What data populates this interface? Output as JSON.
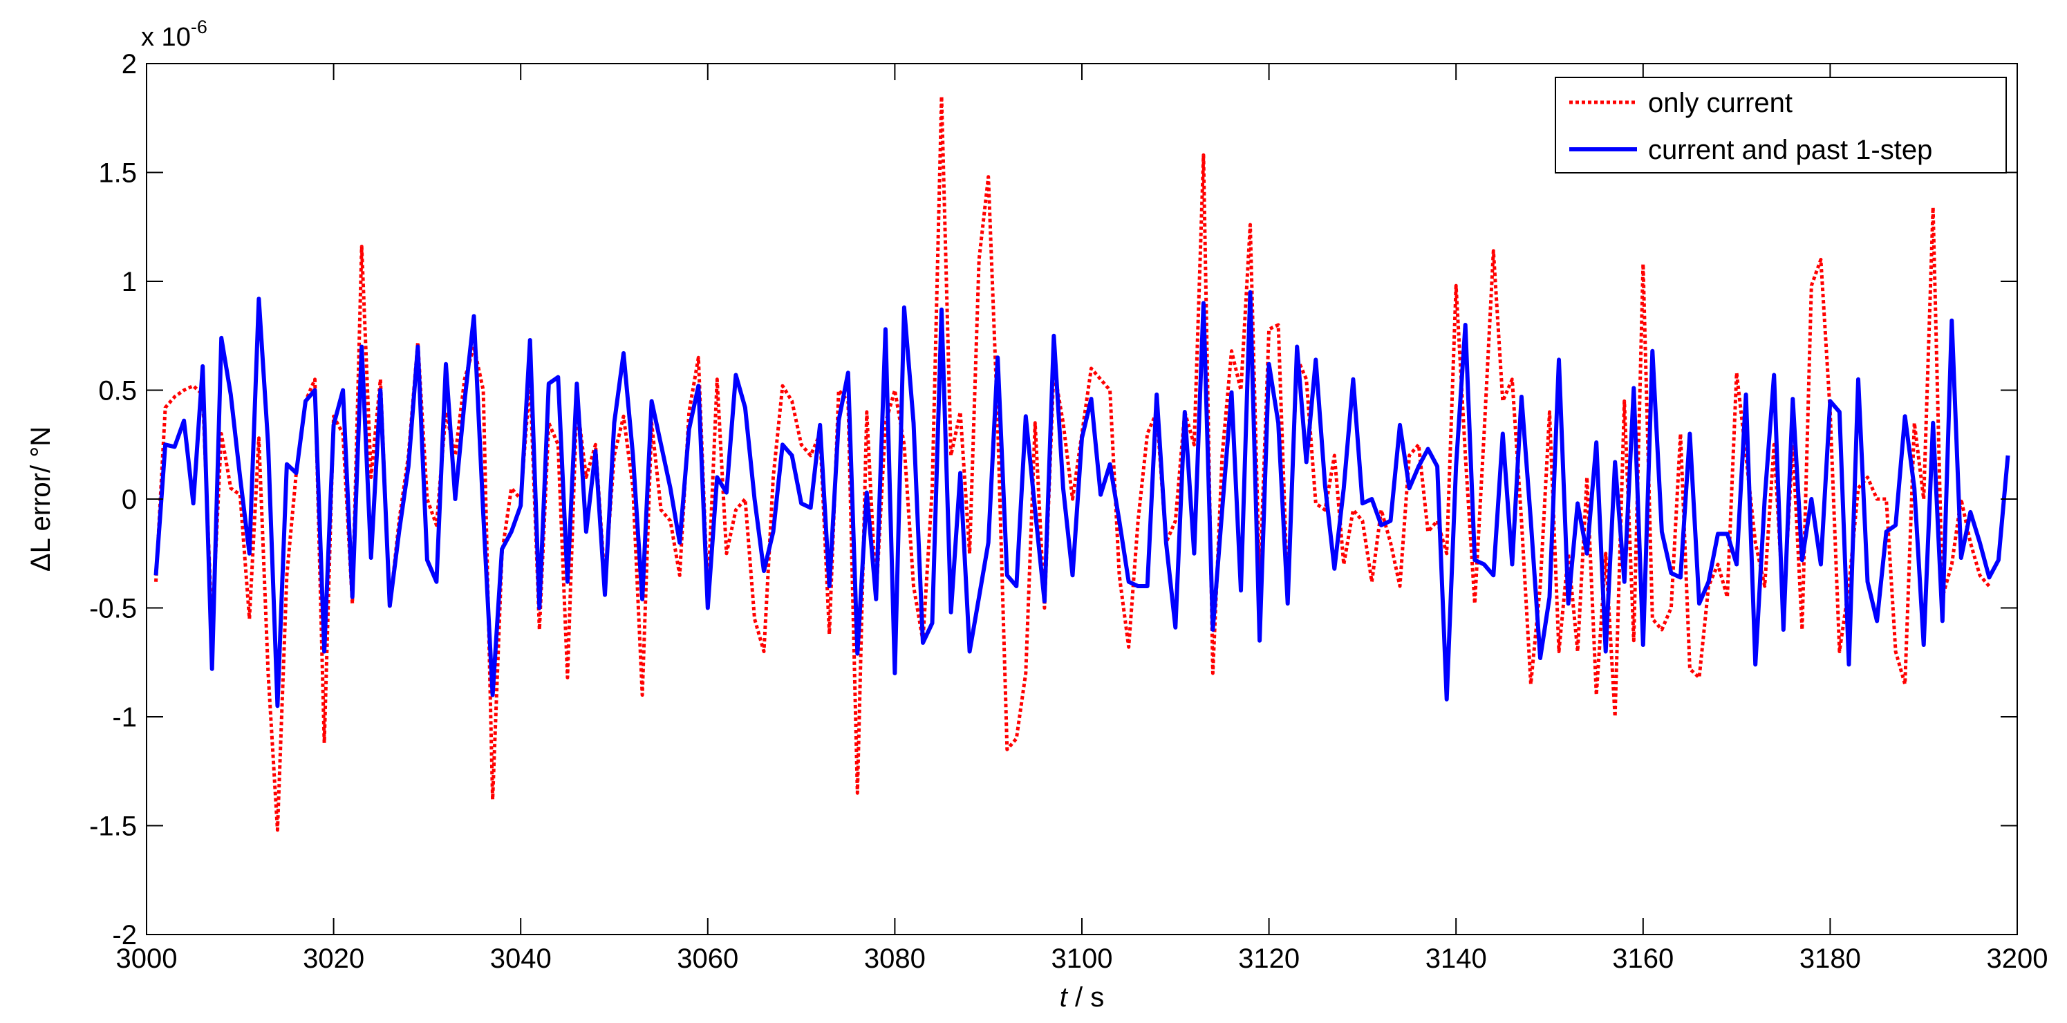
{
  "chart_data": {
    "type": "line",
    "title": "",
    "xlabel_italic": "t",
    "xlabel_rest": " / s",
    "ylabel": "ΔL error/ °N",
    "y_exponent_prefix": "x 10",
    "y_exponent_power": "-6",
    "xlim": [
      3000,
      3200
    ],
    "ylim": [
      -2,
      2
    ],
    "x_ticks": [
      3000,
      3020,
      3040,
      3060,
      3080,
      3100,
      3120,
      3140,
      3160,
      3180,
      3200
    ],
    "x_tick_labels": [
      "3000",
      "3020",
      "3040",
      "3060",
      "3080",
      "3100",
      "3120",
      "3140",
      "3160",
      "3180",
      "3200"
    ],
    "y_ticks": [
      -2,
      -1.5,
      -1,
      -0.5,
      0,
      0.5,
      1,
      1.5,
      2
    ],
    "y_tick_labels": [
      "-2",
      "-1.5",
      "-1",
      "-0.5",
      "0",
      "0.5",
      "1",
      "1.5",
      "2"
    ],
    "grid": false,
    "legend_position": "top-right",
    "x_start": 3001,
    "x_step": 1,
    "series": [
      {
        "name": "only current",
        "color": "#ff0000",
        "style": "dotted",
        "values": [
          -0.38,
          0.42,
          0.47,
          0.5,
          0.52,
          0.48,
          -0.6,
          0.3,
          0.05,
          0.02,
          -0.55,
          0.28,
          -0.8,
          -1.52,
          -0.35,
          0.12,
          0.45,
          0.55,
          -1.12,
          0.38,
          0.3,
          -0.48,
          1.16,
          0.1,
          0.55,
          -0.5,
          -0.1,
          0.2,
          0.72,
          0.0,
          -0.12,
          0.4,
          0.2,
          0.55,
          0.7,
          0.5,
          -1.38,
          -0.25,
          0.05,
          0.0,
          0.55,
          -0.6,
          0.35,
          0.25,
          -0.82,
          0.45,
          0.1,
          0.25,
          -0.38,
          0.2,
          0.38,
          0.05,
          -0.9,
          0.35,
          -0.05,
          -0.1,
          -0.35,
          0.4,
          0.65,
          -0.45,
          0.55,
          -0.25,
          -0.05,
          0.0,
          -0.55,
          -0.7,
          0.1,
          0.52,
          0.45,
          0.25,
          0.2,
          0.3,
          -0.62,
          0.5,
          0.45,
          -1.35,
          0.4,
          -0.45,
          0.35,
          0.5,
          0.25,
          -0.4,
          -0.65,
          0.05,
          1.85,
          0.2,
          0.4,
          -0.25,
          1.1,
          1.48,
          0.35,
          -1.15,
          -1.1,
          -0.8,
          0.35,
          -0.5,
          0.6,
          0.35,
          0.0,
          0.3,
          0.6,
          0.55,
          0.5,
          -0.35,
          -0.68,
          -0.1,
          0.3,
          0.4,
          -0.2,
          -0.1,
          0.4,
          0.25,
          1.58,
          -0.8,
          0.2,
          0.68,
          0.5,
          1.26,
          -0.4,
          0.78,
          0.8,
          -0.45,
          0.65,
          0.55,
          -0.02,
          -0.05,
          0.2,
          -0.3,
          -0.05,
          -0.1,
          -0.38,
          -0.05,
          -0.2,
          -0.4,
          0.2,
          0.25,
          -0.15,
          -0.1,
          -0.25,
          0.98,
          0.2,
          -0.48,
          0.3,
          1.14,
          0.45,
          0.55,
          -0.1,
          -0.85,
          -0.4,
          0.4,
          -0.7,
          -0.25,
          -0.7,
          0.1,
          -0.9,
          -0.25,
          -1.0,
          0.45,
          -0.65,
          1.08,
          -0.55,
          -0.6,
          -0.5,
          0.3,
          -0.78,
          -0.82,
          -0.4,
          -0.3,
          -0.45,
          0.58,
          0.2,
          -0.2,
          -0.4,
          0.25,
          -0.5,
          0.25,
          -0.6,
          0.98,
          1.1,
          0.4,
          -0.7,
          -0.4,
          0.05,
          0.1,
          0.0,
          0.0,
          -0.7,
          -0.85,
          0.35,
          0.0,
          1.34,
          -0.45,
          -0.3,
          0.0,
          -0.2,
          -0.35,
          -0.4
        ]
      },
      {
        "name": "current and past 1-step",
        "color": "#0000ff",
        "style": "solid",
        "values": [
          -0.35,
          0.25,
          0.24,
          0.36,
          -0.02,
          0.61,
          -0.78,
          0.74,
          0.48,
          0.1,
          -0.25,
          0.92,
          0.25,
          -0.95,
          0.16,
          0.12,
          0.45,
          0.5,
          -0.7,
          0.34,
          0.5,
          -0.45,
          0.7,
          -0.27,
          0.5,
          -0.49,
          -0.15,
          0.15,
          0.7,
          -0.28,
          -0.38,
          0.62,
          0.0,
          0.45,
          0.84,
          -0.07,
          -0.9,
          -0.23,
          -0.15,
          -0.03,
          0.73,
          -0.5,
          0.53,
          0.56,
          -0.38,
          0.53,
          -0.15,
          0.22,
          -0.44,
          0.35,
          0.67,
          0.2,
          -0.46,
          0.45,
          0.25,
          0.05,
          -0.2,
          0.32,
          0.52,
          -0.5,
          0.1,
          0.03,
          0.57,
          0.42,
          0.0,
          -0.33,
          -0.15,
          0.25,
          0.2,
          -0.02,
          -0.04,
          0.34,
          -0.4,
          0.36,
          0.58,
          -0.71,
          0.03,
          -0.46,
          0.78,
          -0.8,
          0.88,
          0.35,
          -0.66,
          -0.57,
          0.87,
          -0.52,
          0.12,
          -0.7,
          -0.45,
          -0.2,
          0.65,
          -0.35,
          -0.4,
          0.38,
          -0.05,
          -0.47,
          0.75,
          0.05,
          -0.35,
          0.28,
          0.46,
          0.02,
          0.16,
          -0.1,
          -0.38,
          -0.4,
          -0.4,
          0.48,
          -0.2,
          -0.59,
          0.4,
          -0.25,
          0.9,
          -0.6,
          -0.05,
          0.49,
          -0.42,
          0.95,
          -0.65,
          0.62,
          0.35,
          -0.48,
          0.7,
          0.17,
          0.64,
          0.06,
          -0.32,
          0.05,
          0.55,
          -0.02,
          0.0,
          -0.12,
          -0.1,
          0.34,
          0.05,
          0.15,
          0.23,
          0.15,
          -0.92,
          0.15,
          0.8,
          -0.28,
          -0.3,
          -0.35,
          0.3,
          -0.3,
          0.47,
          -0.1,
          -0.73,
          -0.45,
          0.64,
          -0.48,
          -0.02,
          -0.25,
          0.26,
          -0.7,
          0.17,
          -0.38,
          0.51,
          -0.67,
          0.68,
          -0.15,
          -0.34,
          -0.36,
          0.3,
          -0.48,
          -0.38,
          -0.16,
          -0.16,
          -0.3,
          0.48,
          -0.76,
          0.0,
          0.57,
          -0.6,
          0.46,
          -0.28,
          0.0,
          -0.3,
          0.45,
          0.4,
          -0.76,
          0.55,
          -0.38,
          -0.56,
          -0.15,
          -0.12,
          0.38,
          0.05,
          -0.67,
          0.35,
          -0.56,
          0.82,
          -0.27,
          -0.06,
          -0.2,
          -0.36,
          -0.28,
          0.2
        ]
      }
    ]
  }
}
